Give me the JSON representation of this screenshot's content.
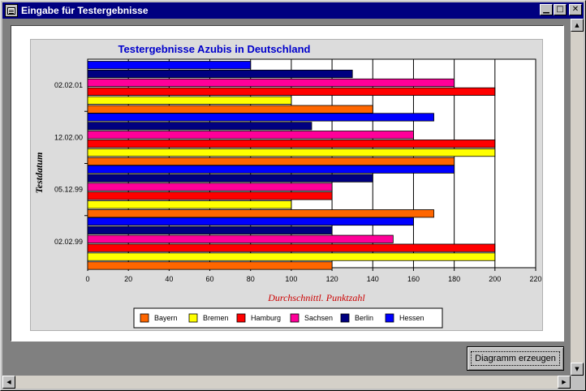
{
  "window": {
    "title": "Eingabe für Testergebnisse",
    "icons": {
      "system": "app-icon",
      "minimize": "minimize-icon",
      "maximize": "maximize-icon",
      "close": "close-icon"
    }
  },
  "button": {
    "generate_label": "Diagramm erzeugen"
  },
  "colors": {
    "titlebar": "#000080",
    "chart_title": "#0000cc",
    "xlabel": "#cc0000"
  },
  "chart_data": {
    "type": "bar",
    "orientation": "horizontal",
    "title": "Testergebnisse Azubis in Deutschland",
    "xlabel": "Durchschnittl. Punktzahl",
    "ylabel": "Testdatum",
    "xlim": [
      0,
      220
    ],
    "xticks": [
      "0",
      "20",
      "40",
      "60",
      "80",
      "100",
      "120",
      "140",
      "160",
      "180",
      "200",
      "220"
    ],
    "grid": "vertical",
    "legend_position": "bottom",
    "categories": [
      "02.02.01",
      "12.02.00",
      "05.12.99",
      "02.02.99"
    ],
    "series": [
      {
        "name": "Bayern",
        "color": "#ff6600",
        "values": [
          140,
          180,
          170,
          120
        ]
      },
      {
        "name": "Bremen",
        "color": "#ffff00",
        "values": [
          100,
          200,
          100,
          200
        ]
      },
      {
        "name": "Hamburg",
        "color": "#ff0000",
        "values": [
          200,
          200,
          120,
          200
        ]
      },
      {
        "name": "Sachsen",
        "color": "#ff0099",
        "values": [
          180,
          160,
          120,
          150
        ]
      },
      {
        "name": "Berlin",
        "color": "#000080",
        "values": [
          130,
          110,
          140,
          120
        ]
      },
      {
        "name": "Hessen",
        "color": "#0000ff",
        "values": [
          80,
          170,
          180,
          160
        ]
      }
    ]
  }
}
